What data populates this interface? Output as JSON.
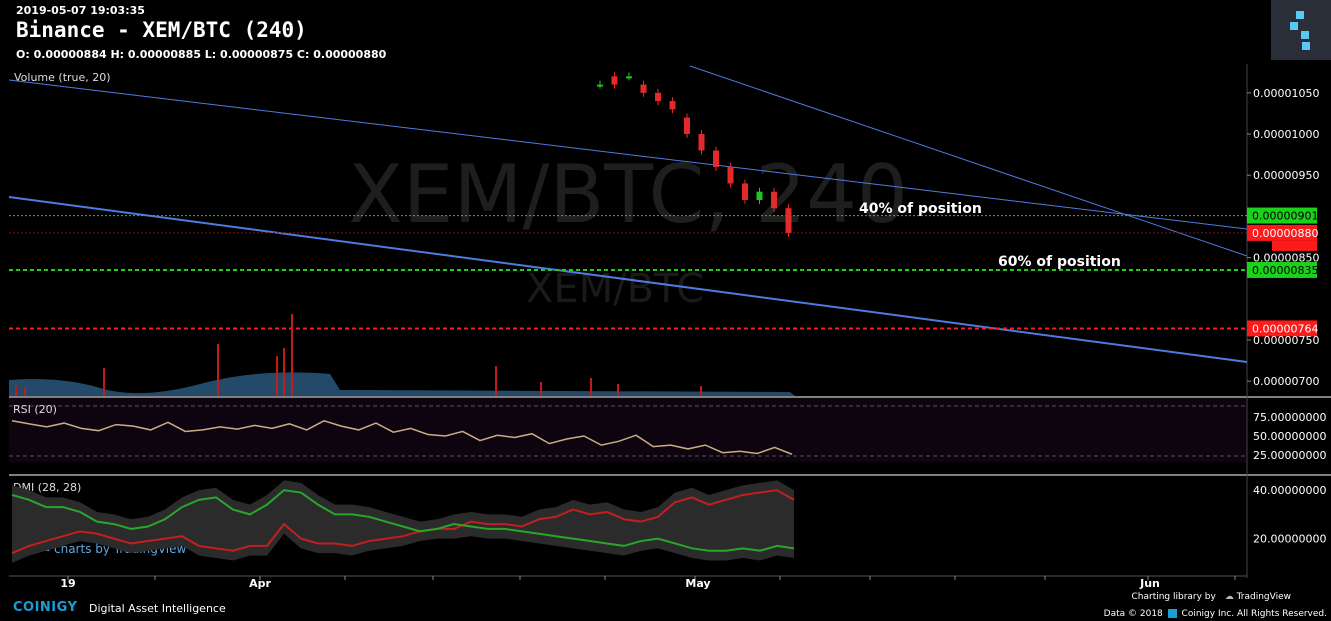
{
  "header": {
    "timestamp": "2019-05-07 19:03:35",
    "title": "Binance - XEM/BTC (240)",
    "ohlc": "O: 0.00000884 H: 0.00000885 L: 0.00000875 C: 0.00000880"
  },
  "watermark": {
    "main": "XEM/BTC, 240",
    "sub": "XEM/BTC"
  },
  "indicators": {
    "volume": "Volume (true, 20)",
    "rsi": "RSI (20)",
    "dmi": "DMI (28, 28)"
  },
  "annotations": {
    "a40": "40% of position",
    "a60": "60% of position"
  },
  "tv_badge": "charts by TradingView",
  "footer": {
    "brand": "COINIGY",
    "tagline": "Digital Asset Intelligence",
    "charting": "Charting library by",
    "tradingview": "TradingView",
    "copyright": "Data © 2018",
    "company": "Coinigy Inc. All Rights Reserved."
  },
  "colors": {
    "up": "#22c522",
    "down": "#e32a2a",
    "trend": "#4f7be0",
    "rsi": "#c9ad82",
    "dmi_plus": "#2aa52a",
    "dmi_minus": "#c21f1f",
    "green_level": "#19d219",
    "red_level": "#ff1a1a"
  },
  "chart_data": {
    "type": "line",
    "price_axis": {
      "ticks": [
        "0.00001050",
        "0.00001000",
        "0.00000950",
        "0.00000850",
        "0.00000750",
        "0.00000700"
      ],
      "tick_values": [
        1.05e-05,
        1e-05,
        9.5e-06,
        8.5e-06,
        7.5e-06,
        7e-06
      ],
      "range": [
        6.82e-06,
        1.085e-05
      ]
    },
    "levels": [
      {
        "label": "0.00000901",
        "value": 9.01e-06,
        "color": "green",
        "style": "dotted"
      },
      {
        "label": "0.00000880",
        "value": 8.8e-06,
        "color": "red",
        "style": "dotted"
      },
      {
        "label": "0.00000835",
        "value": 8.35e-06,
        "color": "green",
        "style": "dashed"
      },
      {
        "label": "0.00000764",
        "value": 7.64e-06,
        "color": "red",
        "style": "dashed"
      }
    ],
    "rsi_axis": {
      "ticks": [
        "75.00000000",
        "50.00000000",
        "25.00000000"
      ],
      "tick_values": [
        75,
        50,
        25
      ],
      "range": [
        0,
        100
      ]
    },
    "dmi_axis": {
      "ticks": [
        "40.00000000",
        "20.00000000"
      ],
      "tick_values": [
        40,
        20
      ],
      "range": [
        5,
        45
      ]
    },
    "x_labels": [
      "19",
      "Apr",
      "May",
      "Jun"
    ],
    "price_series": [
      [
        1.06e-05,
        1.06e-05
      ],
      [
        1.07e-05,
        1.06e-05
      ],
      [
        1.07e-05,
        1.07e-05
      ],
      [
        1.06e-05,
        1.05e-05
      ],
      [
        1.05e-05,
        1.04e-05
      ],
      [
        1.04e-05,
        1.03e-05
      ],
      [
        1.02e-05,
        1e-05
      ],
      [
        1e-05,
        9.8e-06
      ],
      [
        9.8e-06,
        9.6e-06
      ],
      [
        9.6e-06,
        9.4e-06
      ],
      [
        9.4e-06,
        9.2e-06
      ],
      [
        9.2e-06,
        9.3e-06
      ],
      [
        9.3e-06,
        9.1e-06
      ],
      [
        9.1e-06,
        8.8e-06
      ]
    ],
    "rsi_series": [
      70,
      66,
      62,
      67,
      60,
      57,
      65,
      63,
      58,
      68,
      56,
      58,
      62,
      59,
      64,
      60,
      66,
      58,
      70,
      63,
      58,
      67,
      55,
      60,
      52,
      50,
      56,
      44,
      51,
      48,
      53,
      40,
      46,
      50,
      38,
      43,
      51,
      36,
      38,
      33,
      38,
      28,
      30,
      27,
      35,
      26
    ],
    "dmi_plus": [
      38,
      36,
      33,
      33,
      31,
      27,
      26,
      24,
      25,
      28,
      33,
      36,
      37,
      32,
      30,
      34,
      40,
      39,
      34,
      30,
      30,
      29,
      27,
      25,
      23,
      24,
      26,
      25,
      24,
      24,
      23,
      22,
      21,
      20,
      19,
      18,
      17,
      19,
      20,
      18,
      16,
      15,
      15,
      16,
      15,
      17,
      16
    ],
    "dmi_minus": [
      14,
      17,
      19,
      21,
      23,
      22,
      20,
      18,
      19,
      20,
      21,
      17,
      16,
      15,
      17,
      17,
      26,
      20,
      18,
      18,
      17,
      19,
      20,
      21,
      23,
      24,
      24,
      27,
      26,
      26,
      25,
      28,
      29,
      32,
      30,
      31,
      28,
      27,
      29,
      35,
      37,
      34,
      36,
      38,
      39,
      40,
      36
    ]
  }
}
